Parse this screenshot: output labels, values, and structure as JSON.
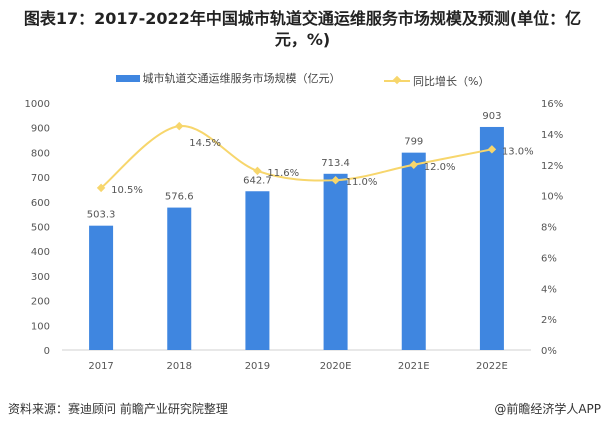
{
  "title": "图表17：2017-2022年中国城市轨道交通运维服务市场规模及预测(单位：亿元，%)",
  "source": "资料来源：赛迪顾问 前瞻产业研究院整理",
  "credit": "@前瞻经济学人APP",
  "chart_data": {
    "type": "bar+line",
    "categories": [
      "2017",
      "2018",
      "2019",
      "2020E",
      "2021E",
      "2022E"
    ],
    "series": [
      {
        "name": "城市轨道交通运维服务市场规模（亿元）",
        "type": "bar",
        "axis": "left",
        "color": "#3f86e0",
        "values": [
          503.3,
          576.6,
          642.7,
          713.4,
          799,
          903
        ],
        "labels": [
          "503.3",
          "576.6",
          "642.7",
          "713.4",
          "799",
          "903"
        ]
      },
      {
        "name": "同比增长（%）",
        "type": "line",
        "axis": "right",
        "color": "#f7d66c",
        "values": [
          10.5,
          14.5,
          11.6,
          11.0,
          12.0,
          13.0
        ],
        "labels": [
          "10.5%",
          "14.5%",
          "11.6%",
          "11.0%",
          "12.0%",
          "13.0%"
        ]
      }
    ],
    "y_left": {
      "range": [
        0,
        1000
      ],
      "ticks": [
        "0",
        "100",
        "200",
        "300",
        "400",
        "500",
        "600",
        "700",
        "800",
        "900",
        "1000"
      ]
    },
    "y_right": {
      "range": [
        0,
        16
      ],
      "ticks": [
        "0%",
        "2%",
        "4%",
        "6%",
        "8%",
        "10%",
        "12%",
        "14%",
        "16%"
      ]
    },
    "grid": false,
    "legend": "top"
  }
}
